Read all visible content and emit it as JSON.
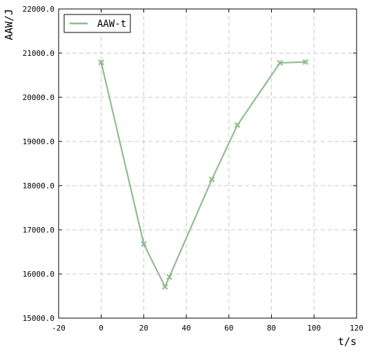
{
  "chart_data": {
    "type": "line",
    "title": "",
    "xlabel": "t/s",
    "ylabel": "AAW/J",
    "xlim": [
      -20,
      120
    ],
    "ylim": [
      15000,
      22000
    ],
    "xticks": [
      -20,
      0,
      20,
      40,
      60,
      80,
      100,
      120
    ],
    "yticks": [
      15000,
      16000,
      17000,
      18000,
      19000,
      20000,
      21000,
      22000
    ],
    "xtick_labels": [
      "-20",
      "0",
      "20",
      "40",
      "60",
      "80",
      "100",
      "120"
    ],
    "ytick_labels": [
      "15000.0",
      "16000.0",
      "17000.0",
      "18000.0",
      "19000.0",
      "20000.0",
      "21000.0",
      "22000.0"
    ],
    "grid": true,
    "legend_position": "top-left",
    "series": [
      {
        "name": "AAW-t",
        "color": "#8fbc8f",
        "marker": "x",
        "x": [
          0,
          20,
          30,
          32,
          52,
          64,
          84,
          96
        ],
        "y": [
          20790,
          16680,
          15710,
          15930,
          18140,
          19370,
          20780,
          20800
        ]
      }
    ]
  }
}
